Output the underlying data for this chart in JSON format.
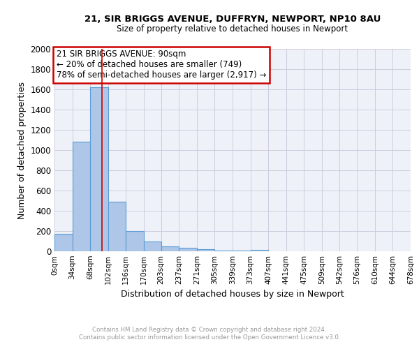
{
  "title_line1": "21, SIR BRIGGS AVENUE, DUFFRYN, NEWPORT, NP10 8AU",
  "title_line2": "Size of property relative to detached houses in Newport",
  "xlabel": "Distribution of detached houses by size in Newport",
  "ylabel": "Number of detached properties",
  "bin_edges": [
    0,
    34,
    68,
    102,
    136,
    170,
    203,
    237,
    271,
    305,
    339,
    373,
    407,
    441,
    475,
    509,
    542,
    576,
    610,
    644,
    678
  ],
  "bar_heights": [
    170,
    1080,
    1620,
    490,
    200,
    100,
    45,
    35,
    20,
    5,
    5,
    15,
    0,
    0,
    0,
    0,
    0,
    0,
    0,
    0
  ],
  "bar_color": "#aec6e8",
  "bar_edgecolor": "#5b9bd5",
  "bar_linewidth": 0.8,
  "grid_color": "#ccccdd",
  "background_color": "#eef2f8",
  "ylim": [
    0,
    2000
  ],
  "yticks": [
    0,
    200,
    400,
    600,
    800,
    1000,
    1200,
    1400,
    1600,
    1800,
    2000
  ],
  "vline_x": 90,
  "vline_color": "#cc0000",
  "annotation_line1": "21 SIR BRIGGS AVENUE: 90sqm",
  "annotation_line2": "← 20% of detached houses are smaller (749)",
  "annotation_line3": "78% of semi-detached houses are larger (2,917) →",
  "annotation_box_edgecolor": "#cc0000",
  "footer_line1": "Contains HM Land Registry data © Crown copyright and database right 2024.",
  "footer_line2": "Contains public sector information licensed under the Open Government Licence v3.0.",
  "footer_color": "#999999",
  "tick_labels": [
    "0sqm",
    "34sqm",
    "68sqm",
    "102sqm",
    "136sqm",
    "170sqm",
    "203sqm",
    "237sqm",
    "271sqm",
    "305sqm",
    "339sqm",
    "373sqm",
    "407sqm",
    "441sqm",
    "475sqm",
    "509sqm",
    "542sqm",
    "576sqm",
    "610sqm",
    "644sqm",
    "678sqm"
  ]
}
